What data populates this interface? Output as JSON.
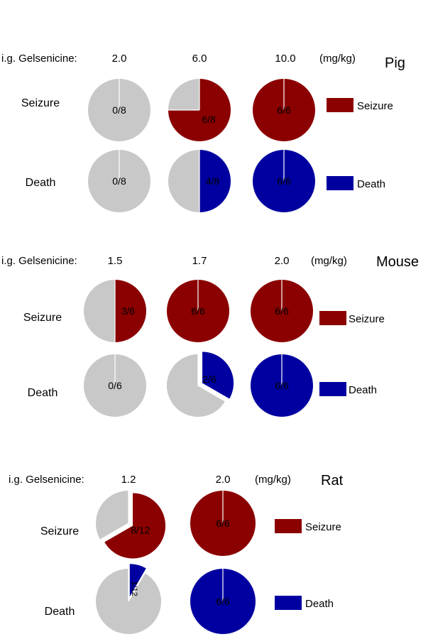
{
  "header_prefix": "i.g. Gelsenicine:",
  "unit": "(mg/kg)",
  "colors": {
    "seizure": "#8b0000",
    "death": "#0000a0",
    "none": "#c8c8c8",
    "divider": "#ffffff"
  },
  "chart_data": [
    {
      "type": "pie",
      "species": "Pig",
      "doses": [
        "2.0",
        "6.0",
        "10.0"
      ],
      "rows": [
        {
          "label": "Seizure",
          "legend": "Seizure",
          "color_key": "seizure",
          "pies": [
            {
              "n": 0,
              "total": 8,
              "label": "0/8"
            },
            {
              "n": 6,
              "total": 8,
              "label": "6/8"
            },
            {
              "n": 6,
              "total": 6,
              "label": "6/6"
            }
          ]
        },
        {
          "label": "Death",
          "legend": "Death",
          "color_key": "death",
          "pies": [
            {
              "n": 0,
              "total": 8,
              "label": "0/8"
            },
            {
              "n": 4,
              "total": 8,
              "label": "4/8"
            },
            {
              "n": 6,
              "total": 6,
              "label": "6/6"
            }
          ]
        }
      ]
    },
    {
      "type": "pie",
      "species": "Mouse",
      "doses": [
        "1.5",
        "1.7",
        "2.0"
      ],
      "rows": [
        {
          "label": "Seizure",
          "legend": "Seizure",
          "color_key": "seizure",
          "pies": [
            {
              "n": 3,
              "total": 6,
              "label": "3/6"
            },
            {
              "n": 6,
              "total": 6,
              "label": "6/6"
            },
            {
              "n": 6,
              "total": 6,
              "label": "6/6"
            }
          ]
        },
        {
          "label": "Death",
          "legend": "Death",
          "color_key": "death",
          "pies": [
            {
              "n": 0,
              "total": 6,
              "label": "0/6"
            },
            {
              "n": 2,
              "total": 6,
              "label": "2/6"
            },
            {
              "n": 6,
              "total": 6,
              "label": "6/6"
            }
          ]
        }
      ]
    },
    {
      "type": "pie",
      "species": "Rat",
      "doses": [
        "1.2",
        "2.0"
      ],
      "rows": [
        {
          "label": "Seizure",
          "legend": "Seizure",
          "color_key": "seizure",
          "pies": [
            {
              "n": 8,
              "total": 12,
              "label": "8/12"
            },
            {
              "n": 6,
              "total": 6,
              "label": "6/6"
            }
          ]
        },
        {
          "label": "Death",
          "legend": "Death",
          "color_key": "death",
          "pies": [
            {
              "n": 1,
              "total": 12,
              "label": "1/12"
            },
            {
              "n": 6,
              "total": 6,
              "label": "6/6"
            }
          ]
        }
      ]
    }
  ]
}
